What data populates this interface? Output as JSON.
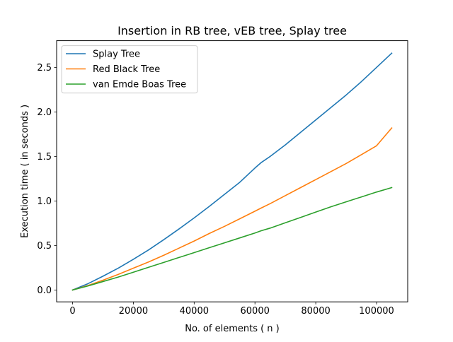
{
  "chart_data": {
    "type": "line",
    "title": "Insertion in RB tree, vEB tree, Splay tree",
    "xlabel": "No. of elements ( n )",
    "ylabel": "Execution time ( in seconds )",
    "xlim": [
      -5250,
      110250
    ],
    "ylim": [
      -0.1333,
      2.8
    ],
    "x_ticks": [
      0,
      20000,
      40000,
      60000,
      80000,
      100000
    ],
    "y_ticks": [
      0.0,
      0.5,
      1.0,
      1.5,
      2.0,
      2.5
    ],
    "x_tick_labels": [
      "0",
      "20000",
      "40000",
      "60000",
      "80000",
      "100000"
    ],
    "y_tick_labels": [
      "0.0",
      "0.5",
      "1.0",
      "1.5",
      "2.0",
      "2.5"
    ],
    "grid": false,
    "legend_position": "top-left",
    "x": [
      0,
      5000,
      10000,
      15000,
      20000,
      25000,
      30000,
      35000,
      40000,
      45000,
      50000,
      55000,
      60000,
      62000,
      65000,
      70000,
      75000,
      80000,
      85000,
      90000,
      95000,
      100000,
      105000
    ],
    "series": [
      {
        "name": "Splay Tree",
        "color": "#1f77b4",
        "values": [
          0.0,
          0.07,
          0.155,
          0.245,
          0.345,
          0.45,
          0.565,
          0.685,
          0.81,
          0.94,
          1.075,
          1.21,
          1.37,
          1.43,
          1.5,
          1.63,
          1.77,
          1.91,
          2.05,
          2.19,
          2.34,
          2.5,
          2.66
        ]
      },
      {
        "name": "Red Black Tree",
        "color": "#ff7f0e",
        "values": [
          0.0,
          0.05,
          0.11,
          0.175,
          0.245,
          0.315,
          0.39,
          0.47,
          0.55,
          0.635,
          0.715,
          0.8,
          0.885,
          0.92,
          0.97,
          1.06,
          1.15,
          1.24,
          1.33,
          1.42,
          1.52,
          1.62,
          1.82
        ]
      },
      {
        "name": "van Emde Boas Tree",
        "color": "#2ca02c",
        "values": [
          0.0,
          0.045,
          0.095,
          0.145,
          0.2,
          0.255,
          0.31,
          0.365,
          0.42,
          0.475,
          0.53,
          0.585,
          0.64,
          0.665,
          0.695,
          0.755,
          0.815,
          0.875,
          0.935,
          0.99,
          1.045,
          1.1,
          1.15
        ]
      }
    ]
  }
}
